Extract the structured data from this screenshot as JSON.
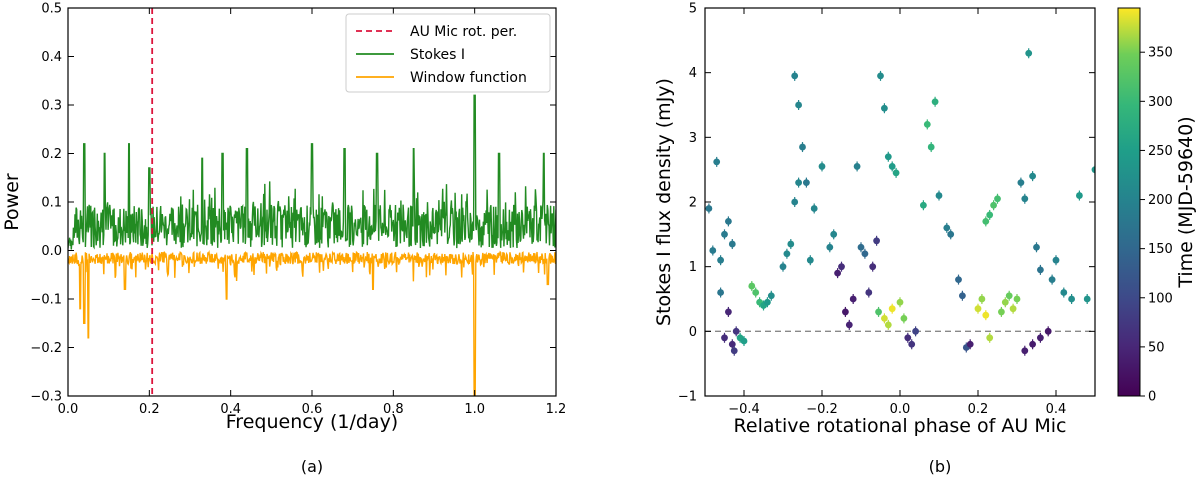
{
  "chart_data": [
    {
      "type": "line",
      "panel_label": "(a)",
      "xlabel": "Frequency (1/day)",
      "ylabel": "Power",
      "xlim": [
        0.0,
        1.2
      ],
      "ylim": [
        -0.3,
        0.5
      ],
      "xticks": [
        0.0,
        0.2,
        0.4,
        0.6,
        0.8,
        1.0,
        1.2
      ],
      "xtick_labels": [
        "0.0",
        "0.2",
        "0.4",
        "0.6",
        "0.8",
        "1.0",
        "1.2"
      ],
      "yticks": [
        -0.3,
        -0.2,
        -0.1,
        0.0,
        0.1,
        0.2,
        0.3,
        0.4,
        0.5
      ],
      "ytick_labels": [
        "−0.3",
        "−0.2",
        "−0.1",
        "0.0",
        "0.1",
        "0.2",
        "0.3",
        "0.4",
        "0.5"
      ],
      "vline": {
        "x": 0.207,
        "label": "AU Mic rot. per.",
        "color": "#dc143c",
        "style": "dashed"
      },
      "legend": [
        "AU Mic rot. per.",
        "Stokes I",
        "Window function"
      ],
      "legend_position": "top-right",
      "series": [
        {
          "name": "Stokes I",
          "color": "#228b22",
          "peaks": [
            [
              0.04,
              0.22
            ],
            [
              0.09,
              0.2
            ],
            [
              0.15,
              0.22
            ],
            [
              0.2,
              0.17
            ],
            [
              0.33,
              0.19
            ],
            [
              0.38,
              0.2
            ],
            [
              0.44,
              0.21
            ],
            [
              0.6,
              0.22
            ],
            [
              0.68,
              0.21
            ],
            [
              0.76,
              0.2
            ],
            [
              0.85,
              0.21
            ],
            [
              1.0,
              0.32
            ],
            [
              1.06,
              0.2
            ],
            [
              1.17,
              0.2
            ]
          ],
          "baseline": 0.05
        },
        {
          "name": "Window function",
          "color": "#ffa500",
          "troughs": [
            [
              0.03,
              -0.12
            ],
            [
              0.04,
              -0.15
            ],
            [
              0.05,
              -0.18
            ],
            [
              0.14,
              -0.08
            ],
            [
              0.39,
              -0.1
            ],
            [
              0.75,
              -0.08
            ],
            [
              1.0,
              -0.3
            ],
            [
              1.18,
              -0.07
            ]
          ],
          "baseline": -0.02
        }
      ]
    },
    {
      "type": "scatter",
      "panel_label": "(b)",
      "xlabel": "Relative rotational phase of AU Mic",
      "ylabel": "Stokes I flux density (mJy)",
      "xlim": [
        -0.5,
        0.5
      ],
      "ylim": [
        -1,
        5
      ],
      "xticks": [
        -0.4,
        -0.2,
        0.0,
        0.2,
        0.4
      ],
      "xtick_labels": [
        "−0.4",
        "−0.2",
        "0.0",
        "0.2",
        "0.4"
      ],
      "yticks": [
        -1,
        0,
        1,
        2,
        3,
        4,
        5
      ],
      "ytick_labels": [
        "−1",
        "0",
        "1",
        "2",
        "3",
        "4",
        "5"
      ],
      "hline": {
        "y": 0,
        "color": "#888888",
        "style": "dashed"
      },
      "colorbar": {
        "label": "Time (MJD-59640)",
        "range": [
          0,
          395
        ],
        "ticks": [
          0,
          50,
          100,
          150,
          200,
          250,
          300,
          350
        ],
        "tick_labels": [
          "0",
          "50",
          "100",
          "150",
          "200",
          "250",
          "300",
          "350"
        ]
      },
      "points": [
        [
          -0.49,
          1.9,
          180
        ],
        [
          -0.48,
          1.25,
          185
        ],
        [
          -0.47,
          2.62,
          190
        ],
        [
          -0.46,
          1.1,
          190
        ],
        [
          -0.45,
          1.5,
          185
        ],
        [
          -0.44,
          1.7,
          180
        ],
        [
          -0.43,
          1.35,
          182
        ],
        [
          -0.46,
          0.6,
          175
        ],
        [
          -0.45,
          -0.1,
          60
        ],
        [
          -0.44,
          0.3,
          50
        ],
        [
          -0.43,
          -0.2,
          55
        ],
        [
          -0.42,
          0.0,
          70
        ],
        [
          -0.425,
          -0.3,
          80
        ],
        [
          -0.41,
          -0.1,
          260
        ],
        [
          -0.4,
          -0.15,
          250
        ],
        [
          -0.38,
          0.7,
          330
        ],
        [
          -0.37,
          0.6,
          320
        ],
        [
          -0.36,
          0.45,
          300
        ],
        [
          -0.35,
          0.4,
          260
        ],
        [
          -0.34,
          0.45,
          240
        ],
        [
          -0.33,
          0.55,
          220
        ],
        [
          -0.3,
          1.0,
          200
        ],
        [
          -0.29,
          1.2,
          210
        ],
        [
          -0.28,
          1.35,
          215
        ],
        [
          -0.27,
          2.0,
          200
        ],
        [
          -0.26,
          2.3,
          205
        ],
        [
          -0.27,
          3.95,
          200
        ],
        [
          -0.26,
          3.5,
          205
        ],
        [
          -0.25,
          2.85,
          190
        ],
        [
          -0.24,
          2.3,
          180
        ],
        [
          -0.23,
          1.1,
          210
        ],
        [
          -0.22,
          1.9,
          205
        ],
        [
          -0.2,
          2.55,
          215
        ],
        [
          -0.18,
          1.3,
          200
        ],
        [
          -0.17,
          1.5,
          205
        ],
        [
          -0.16,
          0.9,
          40
        ],
        [
          -0.15,
          1.0,
          60
        ],
        [
          -0.14,
          0.3,
          30
        ],
        [
          -0.13,
          0.1,
          45
        ],
        [
          -0.12,
          0.5,
          40
        ],
        [
          -0.11,
          2.55,
          195
        ],
        [
          -0.1,
          1.3,
          160
        ],
        [
          -0.09,
          1.2,
          150
        ],
        [
          -0.08,
          0.6,
          70
        ],
        [
          -0.07,
          1.0,
          60
        ],
        [
          -0.06,
          1.4,
          80
        ],
        [
          -0.05,
          3.95,
          215
        ],
        [
          -0.04,
          3.45,
          220
        ],
        [
          -0.03,
          2.7,
          240
        ],
        [
          -0.02,
          2.55,
          245
        ],
        [
          -0.01,
          2.45,
          260
        ],
        [
          -0.055,
          0.3,
          320
        ],
        [
          -0.04,
          0.2,
          380
        ],
        [
          -0.03,
          0.1,
          370
        ],
        [
          -0.02,
          0.35,
          390
        ],
        [
          0.0,
          0.45,
          360
        ],
        [
          0.01,
          0.2,
          350
        ],
        [
          0.02,
          -0.1,
          60
        ],
        [
          0.03,
          -0.2,
          70
        ],
        [
          0.04,
          0.0,
          90
        ],
        [
          0.06,
          1.95,
          270
        ],
        [
          0.07,
          3.2,
          300
        ],
        [
          0.08,
          2.85,
          290
        ],
        [
          0.09,
          3.55,
          280
        ],
        [
          0.1,
          2.1,
          210
        ],
        [
          0.12,
          1.6,
          190
        ],
        [
          0.13,
          1.5,
          175
        ],
        [
          0.15,
          0.8,
          150
        ],
        [
          0.16,
          0.55,
          140
        ],
        [
          0.17,
          -0.25,
          120
        ],
        [
          0.18,
          -0.2,
          40
        ],
        [
          0.2,
          0.35,
          380
        ],
        [
          0.21,
          0.5,
          360
        ],
        [
          0.22,
          0.25,
          390
        ],
        [
          0.23,
          -0.1,
          370
        ],
        [
          0.22,
          1.7,
          310
        ],
        [
          0.23,
          1.8,
          300
        ],
        [
          0.24,
          1.95,
          320
        ],
        [
          0.25,
          2.05,
          310
        ],
        [
          0.26,
          0.3,
          350
        ],
        [
          0.27,
          0.45,
          360
        ],
        [
          0.28,
          0.55,
          340
        ],
        [
          0.29,
          0.35,
          370
        ],
        [
          0.3,
          0.5,
          350
        ],
        [
          0.31,
          2.3,
          190
        ],
        [
          0.32,
          2.05,
          200
        ],
        [
          0.33,
          4.3,
          230
        ],
        [
          0.34,
          2.4,
          210
        ],
        [
          0.35,
          1.3,
          180
        ],
        [
          0.36,
          0.95,
          170
        ],
        [
          0.32,
          -0.3,
          40
        ],
        [
          0.34,
          -0.2,
          35
        ],
        [
          0.36,
          -0.1,
          40
        ],
        [
          0.38,
          0.0,
          30
        ],
        [
          0.39,
          0.8,
          190
        ],
        [
          0.4,
          1.1,
          200
        ],
        [
          0.42,
          0.6,
          210
        ],
        [
          0.44,
          0.5,
          220
        ],
        [
          0.46,
          2.1,
          240
        ],
        [
          0.48,
          0.5,
          230
        ],
        [
          0.5,
          2.5,
          235
        ]
      ]
    }
  ]
}
